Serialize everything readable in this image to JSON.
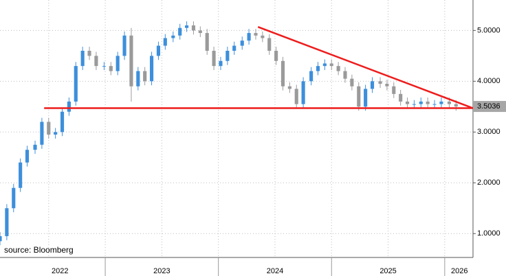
{
  "chart_data": {
    "type": "candlestick",
    "source": "source: Bloomberg",
    "x": [
      2022.07,
      2022.13,
      2022.19,
      2022.25,
      2022.31,
      2022.38,
      2022.44,
      2022.5,
      2022.56,
      2022.62,
      2022.68,
      2022.74,
      2022.8,
      2022.86,
      2022.92,
      2022.99,
      2023.05,
      2023.11,
      2023.17,
      2023.23,
      2023.29,
      2023.35,
      2023.41,
      2023.47,
      2023.53,
      2023.6,
      2023.66,
      2023.72,
      2023.78,
      2023.84,
      2023.9,
      2023.96,
      2024.02,
      2024.08,
      2024.14,
      2024.21,
      2024.27,
      2024.33,
      2024.39,
      2024.45,
      2024.51,
      2024.57,
      2024.63,
      2024.69,
      2024.75,
      2024.82,
      2024.88,
      2024.94,
      2025.0,
      2025.06,
      2025.12,
      2025.18,
      2025.24,
      2025.3,
      2025.36,
      2025.43,
      2025.49,
      2025.55,
      2025.61,
      2025.67,
      2025.73,
      2025.79,
      2025.85,
      2025.91,
      2025.97,
      2026.04,
      2026.1
    ],
    "open": [
      0.85,
      0.95,
      1.5,
      1.9,
      2.4,
      2.65,
      2.75,
      3.2,
      2.95,
      3.0,
      3.4,
      3.6,
      4.3,
      4.6,
      4.5,
      4.3,
      4.3,
      4.2,
      4.5,
      4.9,
      3.9,
      4.2,
      4.0,
      4.5,
      4.7,
      4.85,
      4.9,
      5.05,
      5.1,
      5.0,
      4.95,
      4.6,
      4.3,
      4.4,
      4.6,
      4.7,
      4.8,
      4.95,
      4.9,
      4.85,
      4.6,
      4.4,
      3.9,
      3.85,
      3.55,
      4.0,
      4.2,
      4.3,
      4.35,
      4.3,
      4.2,
      4.05,
      3.9,
      3.5,
      3.85,
      4.0,
      3.95,
      3.9,
      3.75,
      3.6,
      3.55,
      3.55,
      3.6,
      3.55,
      3.55,
      3.6,
      3.55
    ],
    "high": [
      1.03,
      1.58,
      1.98,
      2.48,
      2.73,
      2.83,
      3.28,
      3.28,
      3.08,
      3.48,
      3.68,
      4.38,
      4.68,
      4.68,
      4.58,
      4.38,
      4.38,
      4.58,
      4.98,
      5.05,
      4.28,
      4.28,
      4.58,
      4.78,
      4.93,
      4.98,
      5.13,
      5.18,
      5.18,
      5.08,
      5.03,
      4.68,
      4.48,
      4.68,
      4.78,
      4.88,
      5.03,
      5.03,
      4.98,
      4.93,
      4.68,
      4.48,
      3.98,
      3.93,
      4.08,
      4.28,
      4.38,
      4.43,
      4.43,
      4.38,
      4.28,
      4.13,
      3.98,
      3.93,
      4.08,
      4.08,
      4.03,
      3.98,
      3.83,
      3.68,
      3.63,
      3.68,
      3.68,
      3.63,
      3.68,
      3.68,
      3.63
    ],
    "low": [
      0.77,
      0.87,
      1.42,
      1.82,
      2.32,
      2.57,
      2.67,
      2.87,
      2.87,
      2.92,
      3.32,
      3.52,
      4.22,
      4.42,
      4.22,
      4.22,
      4.12,
      4.12,
      4.42,
      3.6,
      3.82,
      3.92,
      3.92,
      4.42,
      4.62,
      4.77,
      4.82,
      4.97,
      4.92,
      4.87,
      4.52,
      4.22,
      4.22,
      4.32,
      4.52,
      4.62,
      4.72,
      4.82,
      4.77,
      4.52,
      4.32,
      3.82,
      3.77,
      3.47,
      3.47,
      3.92,
      4.12,
      4.22,
      4.22,
      4.12,
      3.97,
      3.82,
      3.42,
      3.42,
      3.77,
      3.87,
      3.82,
      3.67,
      3.52,
      3.47,
      3.47,
      3.47,
      3.47,
      3.47,
      3.47,
      3.47,
      3.42
    ],
    "close": [
      0.95,
      1.5,
      1.9,
      2.4,
      2.65,
      2.75,
      3.2,
      2.95,
      3.0,
      3.4,
      3.6,
      4.3,
      4.6,
      4.5,
      4.3,
      4.3,
      4.2,
      4.5,
      4.9,
      3.9,
      4.2,
      4.0,
      4.5,
      4.7,
      4.85,
      4.9,
      5.05,
      5.1,
      5.0,
      4.95,
      4.6,
      4.3,
      4.4,
      4.6,
      4.7,
      4.8,
      4.95,
      4.9,
      4.85,
      4.6,
      4.4,
      3.9,
      3.85,
      3.55,
      4.0,
      4.2,
      4.3,
      4.35,
      4.3,
      4.2,
      4.05,
      3.9,
      3.5,
      3.85,
      4.0,
      3.95,
      3.9,
      3.75,
      3.6,
      3.55,
      3.55,
      3.6,
      3.55,
      3.55,
      3.6,
      3.55,
      3.5036
    ],
    "up_color": "#3d8fdb",
    "down_color": "#9a9a9a",
    "lines": [
      {
        "x": [
          2022.46,
          2026.25
        ],
        "y": [
          3.47,
          3.47
        ],
        "color": "#ee1c1c"
      },
      {
        "x": [
          2024.35,
          2026.25
        ],
        "y": [
          5.07,
          3.47
        ],
        "color": "#ee1c1c"
      }
    ],
    "xlim": [
      2022.07,
      2026.25
    ],
    "ylim": [
      0.53,
      5.6
    ],
    "yticks": [
      {
        "value": 1,
        "label": "1.0000"
      },
      {
        "value": 2,
        "label": "2.0000"
      },
      {
        "value": 3,
        "label": "3.0000"
      },
      {
        "value": 4,
        "label": "4.0000"
      },
      {
        "value": 5,
        "label": "5.0000"
      }
    ],
    "xticks": [
      {
        "value": 2022.6,
        "label": "2022"
      },
      {
        "value": 2023.5,
        "label": "2023"
      },
      {
        "value": 2024.5,
        "label": "2024"
      },
      {
        "value": 2025.5,
        "label": "2025"
      },
      {
        "value": 2026.13,
        "label": "2026"
      }
    ],
    "x_separators": [
      2023,
      2024,
      2025,
      2026
    ],
    "xgrid": [
      2022.5,
      2023,
      2023.5,
      2024,
      2024.5,
      2025,
      2025.5,
      2026
    ],
    "grid": true
  }
}
